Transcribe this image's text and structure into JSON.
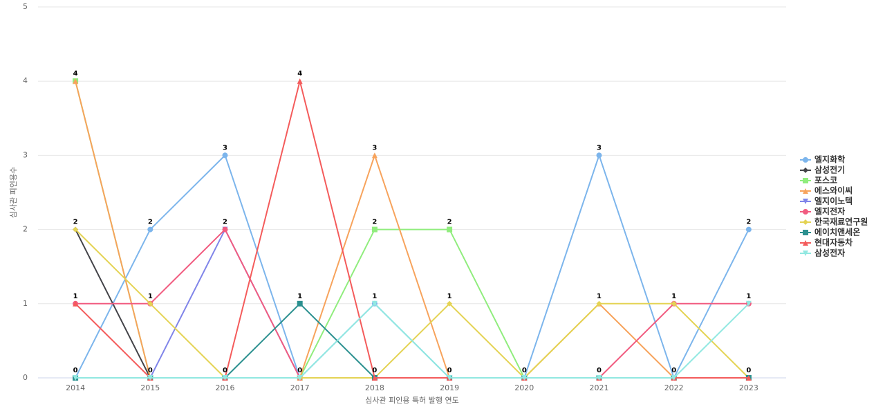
{
  "chart_data": {
    "type": "line",
    "x_label": "심사관 피인용 특허 발행 연도",
    "y_label": "심사관 피인용수",
    "categories": [
      "2014",
      "2015",
      "2016",
      "2017",
      "2018",
      "2019",
      "2020",
      "2021",
      "2022",
      "2023"
    ],
    "ylim": [
      0,
      5
    ],
    "yticks": [
      0,
      1,
      2,
      3,
      4,
      5
    ],
    "grid": true,
    "series": [
      {
        "name": "엘지화학",
        "color": "#7cb5ec",
        "marker": "circle",
        "values": [
          0,
          2,
          3,
          0,
          1,
          0,
          0,
          3,
          0,
          2
        ]
      },
      {
        "name": "삼성전기",
        "color": "#434348",
        "marker": "diamond",
        "values": [
          2,
          0,
          0,
          0,
          0,
          0,
          0,
          0,
          0,
          0
        ]
      },
      {
        "name": "포스코",
        "color": "#90ed7d",
        "marker": "square",
        "values": [
          4,
          0,
          0,
          0,
          2,
          2,
          0,
          0,
          0,
          0
        ]
      },
      {
        "name": "에스와이씨",
        "color": "#f7a35c",
        "marker": "triangle",
        "values": [
          4,
          0,
          0,
          0,
          3,
          0,
          0,
          1,
          0,
          0
        ]
      },
      {
        "name": "엘지이노텍",
        "color": "#8085e9",
        "marker": "triangle-down",
        "values": [
          0,
          0,
          2,
          0,
          0,
          0,
          0,
          0,
          0,
          0
        ]
      },
      {
        "name": "엘지전자",
        "color": "#f15c80",
        "marker": "circle",
        "values": [
          1,
          1,
          2,
          0,
          0,
          0,
          0,
          0,
          1,
          1
        ]
      },
      {
        "name": "한국재료연구원",
        "color": "#e4d354",
        "marker": "diamond",
        "values": [
          2,
          1,
          0,
          0,
          0,
          1,
          0,
          1,
          1,
          0
        ]
      },
      {
        "name": "에이치앤세온",
        "color": "#2b908f",
        "marker": "square",
        "values": [
          0,
          0,
          0,
          1,
          0,
          0,
          0,
          0,
          0,
          0
        ]
      },
      {
        "name": "현대자동차",
        "color": "#f45b5b",
        "marker": "triangle",
        "values": [
          1,
          0,
          0,
          4,
          0,
          0,
          0,
          0,
          0,
          0
        ]
      },
      {
        "name": "삼성전자",
        "color": "#91e8e1",
        "marker": "triangle-down",
        "values": [
          0,
          0,
          0,
          0,
          1,
          0,
          0,
          0,
          0,
          1
        ]
      }
    ]
  }
}
